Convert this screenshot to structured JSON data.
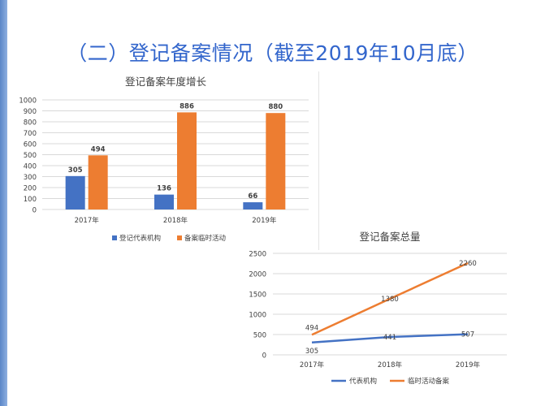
{
  "slide": {
    "title": "（二）登记备案情况（截至2019年10月底）",
    "accent_color": "#3366cc"
  },
  "chart_data": [
    {
      "type": "bar",
      "title": "登记备案年度增长",
      "categories": [
        "2017年",
        "2018年",
        "2019年"
      ],
      "series": [
        {
          "name": "登记代表机构",
          "values": [
            305,
            136,
            66
          ],
          "color": "#4472c4"
        },
        {
          "name": "备案临时活动",
          "values": [
            494,
            886,
            880
          ],
          "color": "#ed7d31"
        }
      ],
      "ylim": [
        0,
        1000
      ],
      "yticks": [
        "0",
        "100",
        "200",
        "300",
        "400",
        "500",
        "600",
        "700",
        "800",
        "900",
        "1000"
      ],
      "grid": true,
      "legend": "bottom"
    },
    {
      "type": "line",
      "title": "登记备案总量",
      "categories": [
        "2017年",
        "2018年",
        "2019年"
      ],
      "series": [
        {
          "name": "代表机构",
          "values": [
            305,
            441,
            507
          ],
          "color": "#4472c4"
        },
        {
          "name": "临时活动备案",
          "values": [
            494,
            1380,
            2260
          ],
          "color": "#ed7d31"
        }
      ],
      "ylim": [
        0,
        2500
      ],
      "yticks": [
        "0",
        "500",
        "1000",
        "1500",
        "2000",
        "2500"
      ],
      "grid": true,
      "legend": "bottom"
    }
  ]
}
